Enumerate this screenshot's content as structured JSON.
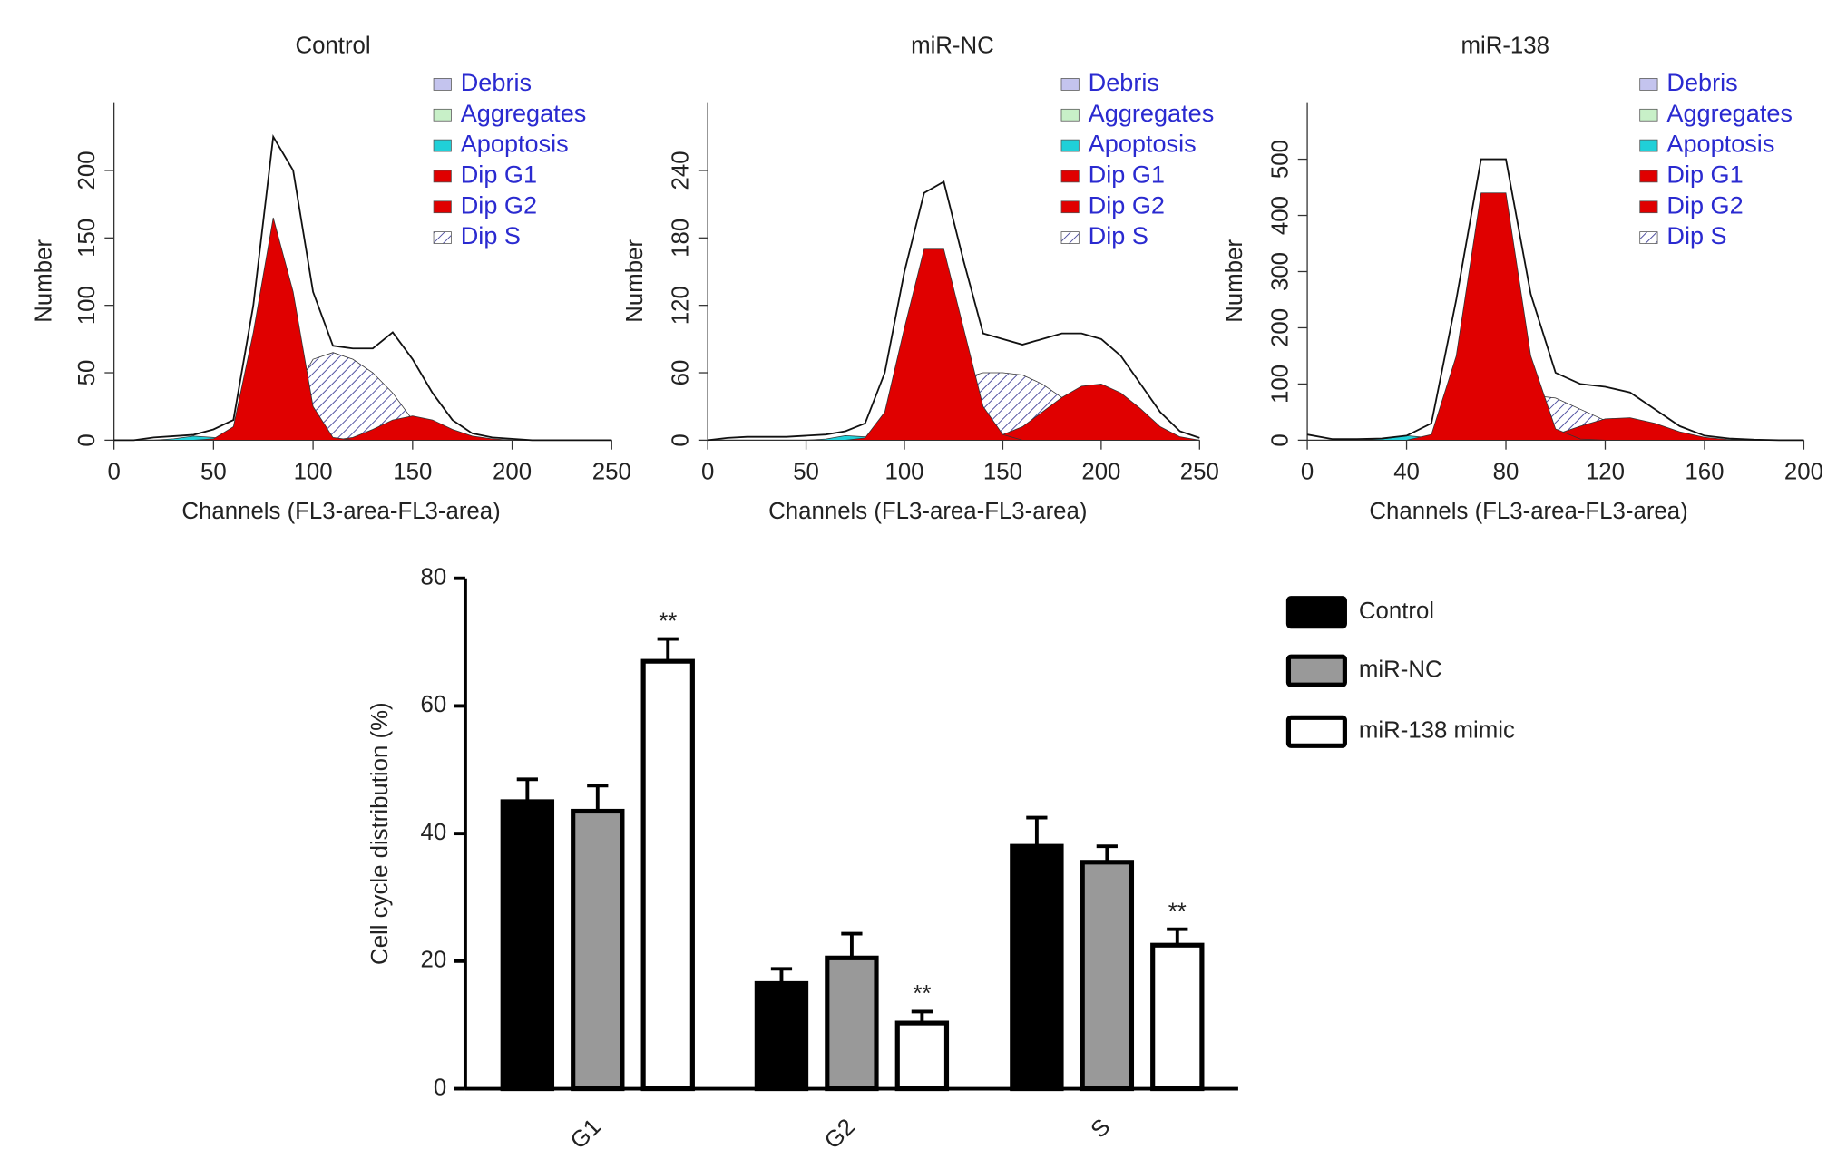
{
  "chart_data": [
    {
      "type": "area",
      "title": "Control",
      "x_label": "Channels (FL3-area-FL3-area)",
      "y_label": "Number",
      "x": [
        0,
        10,
        20,
        30,
        40,
        50,
        60,
        70,
        80,
        90,
        100,
        110,
        120,
        130,
        140,
        150,
        160,
        170,
        180,
        190,
        200,
        210,
        220,
        230,
        240,
        250
      ],
      "xlim": [
        0,
        250
      ],
      "xticks": [
        0,
        50,
        100,
        150,
        200,
        250
      ],
      "ylim": [
        0,
        250
      ],
      "yticks": [
        0,
        50,
        100,
        150,
        200
      ],
      "series": [
        {
          "name": "Debris",
          "color": "#c4c4ee",
          "values": [
            0,
            0,
            0,
            0,
            0,
            0,
            0,
            0,
            0,
            0,
            0,
            0,
            0,
            0,
            0,
            0,
            0,
            0,
            0,
            0,
            0,
            0,
            0,
            0,
            0,
            0
          ]
        },
        {
          "name": "Aggregates",
          "color": "#c8f0c8",
          "values": [
            0,
            0,
            0,
            0,
            0,
            0,
            0,
            0,
            0,
            0,
            0,
            0,
            0,
            0,
            0,
            0,
            0,
            0,
            0,
            0,
            0,
            0,
            0,
            0,
            0,
            0
          ]
        },
        {
          "name": "Apoptosis",
          "color": "#20d0d8",
          "values": [
            0,
            0,
            0,
            1,
            3,
            2,
            0,
            0,
            0,
            0,
            0,
            0,
            0,
            0,
            0,
            0,
            0,
            0,
            0,
            0,
            0,
            0,
            0,
            0,
            0,
            0
          ]
        },
        {
          "name": "Dip G1",
          "color": "#e00000",
          "values": [
            0,
            0,
            0,
            0,
            0,
            1,
            10,
            80,
            165,
            110,
            25,
            2,
            0,
            0,
            0,
            0,
            0,
            0,
            0,
            0,
            0,
            0,
            0,
            0,
            0,
            0
          ]
        },
        {
          "name": "Dip G2",
          "color": "#e00000",
          "values": [
            0,
            0,
            0,
            0,
            0,
            0,
            0,
            0,
            0,
            0,
            0,
            0,
            2,
            8,
            15,
            18,
            15,
            8,
            3,
            1,
            0,
            0,
            0,
            0,
            0,
            0
          ]
        },
        {
          "name": "Dip S",
          "color": "#d0d0ea",
          "pattern": "hatch",
          "values": [
            0,
            0,
            0,
            0,
            0,
            0,
            0,
            2,
            10,
            35,
            60,
            65,
            60,
            50,
            35,
            15,
            3,
            0,
            0,
            0,
            0,
            0,
            0,
            0,
            0,
            0
          ]
        }
      ],
      "observed": [
        0,
        0,
        2,
        3,
        4,
        8,
        15,
        100,
        225,
        200,
        110,
        70,
        68,
        68,
        80,
        60,
        35,
        15,
        5,
        2,
        1,
        0,
        0,
        0,
        0,
        0
      ]
    },
    {
      "type": "area",
      "title": "miR-NC",
      "x_label": "Channels (FL3-area-FL3-area)",
      "y_label": "Number",
      "x": [
        0,
        10,
        20,
        30,
        40,
        50,
        60,
        70,
        80,
        90,
        100,
        110,
        120,
        130,
        140,
        150,
        160,
        170,
        180,
        190,
        200,
        210,
        220,
        230,
        240,
        250
      ],
      "xlim": [
        0,
        250
      ],
      "xticks": [
        0,
        50,
        100,
        150,
        200,
        250
      ],
      "ylim": [
        0,
        300
      ],
      "yticks": [
        0,
        60,
        120,
        180,
        240
      ],
      "series": [
        {
          "name": "Debris",
          "color": "#c4c4ee",
          "values": [
            0,
            0,
            0,
            0,
            0,
            0,
            0,
            0,
            0,
            0,
            0,
            0,
            0,
            0,
            0,
            0,
            0,
            0,
            0,
            0,
            0,
            0,
            0,
            0,
            0,
            0
          ]
        },
        {
          "name": "Aggregates",
          "color": "#c8f0c8",
          "values": [
            0,
            0,
            0,
            0,
            0,
            0,
            0,
            0,
            0,
            0,
            0,
            0,
            0,
            0,
            0,
            0,
            0,
            0,
            0,
            0,
            0,
            0,
            0,
            0,
            0,
            0
          ]
        },
        {
          "name": "Apoptosis",
          "color": "#20d0d8",
          "values": [
            0,
            0,
            0,
            0,
            0,
            0,
            1,
            4,
            3,
            0,
            0,
            0,
            0,
            0,
            0,
            0,
            0,
            0,
            0,
            0,
            0,
            0,
            0,
            0,
            0,
            0
          ]
        },
        {
          "name": "Dip G1",
          "color": "#e00000",
          "values": [
            0,
            0,
            0,
            0,
            0,
            0,
            0,
            0,
            2,
            25,
            100,
            170,
            170,
            100,
            30,
            5,
            0,
            0,
            0,
            0,
            0,
            0,
            0,
            0,
            0,
            0
          ]
        },
        {
          "name": "Dip G2",
          "color": "#e00000",
          "values": [
            0,
            0,
            0,
            0,
            0,
            0,
            0,
            0,
            0,
            0,
            0,
            0,
            0,
            0,
            0,
            5,
            12,
            25,
            38,
            48,
            50,
            42,
            28,
            12,
            3,
            0
          ]
        },
        {
          "name": "Dip S",
          "color": "#d0d0ea",
          "pattern": "hatch",
          "values": [
            0,
            0,
            0,
            0,
            0,
            0,
            0,
            0,
            0,
            0,
            5,
            20,
            40,
            55,
            60,
            60,
            58,
            50,
            38,
            25,
            12,
            5,
            1,
            0,
            0,
            0
          ]
        }
      ],
      "observed": [
        0,
        2,
        3,
        3,
        3,
        4,
        5,
        8,
        15,
        60,
        150,
        220,
        230,
        160,
        95,
        90,
        85,
        90,
        95,
        95,
        90,
        75,
        50,
        25,
        8,
        2
      ]
    },
    {
      "type": "area",
      "title": "miR-138",
      "x_label": "Channels (FL3-area-FL3-area)",
      "y_label": "Number",
      "x": [
        0,
        10,
        20,
        30,
        40,
        50,
        60,
        70,
        80,
        90,
        100,
        110,
        120,
        130,
        140,
        150,
        160,
        170,
        180,
        190,
        200
      ],
      "xlim": [
        0,
        200
      ],
      "xticks": [
        0,
        40,
        80,
        120,
        160,
        200
      ],
      "ylim": [
        0,
        600
      ],
      "yticks": [
        0,
        100,
        200,
        300,
        400,
        500
      ],
      "series": [
        {
          "name": "Debris",
          "color": "#c4c4ee",
          "values": [
            0,
            0,
            0,
            0,
            0,
            0,
            0,
            0,
            0,
            0,
            0,
            0,
            0,
            0,
            0,
            0,
            0,
            0,
            0,
            0,
            0
          ]
        },
        {
          "name": "Aggregates",
          "color": "#c8f0c8",
          "values": [
            0,
            0,
            0,
            0,
            0,
            0,
            0,
            0,
            0,
            0,
            0,
            0,
            0,
            0,
            0,
            0,
            0,
            0,
            0,
            0,
            0
          ]
        },
        {
          "name": "Apoptosis",
          "color": "#20d0d8",
          "values": [
            0,
            0,
            0,
            2,
            8,
            4,
            0,
            0,
            0,
            0,
            0,
            0,
            0,
            0,
            0,
            0,
            0,
            0,
            0,
            0,
            0
          ]
        },
        {
          "name": "Dip G1",
          "color": "#e00000",
          "values": [
            0,
            0,
            0,
            0,
            0,
            10,
            150,
            440,
            440,
            150,
            20,
            2,
            0,
            0,
            0,
            0,
            0,
            0,
            0,
            0,
            0
          ]
        },
        {
          "name": "Dip G2",
          "color": "#e00000",
          "values": [
            0,
            0,
            0,
            0,
            0,
            0,
            0,
            0,
            0,
            3,
            10,
            25,
            38,
            40,
            30,
            15,
            5,
            1,
            0,
            0,
            0
          ]
        },
        {
          "name": "Dip S",
          "color": "#d0d0ea",
          "pattern": "hatch",
          "values": [
            0,
            0,
            0,
            0,
            0,
            0,
            5,
            30,
            60,
            80,
            75,
            55,
            35,
            18,
            7,
            2,
            0,
            0,
            0,
            0,
            0
          ]
        }
      ],
      "observed": [
        10,
        2,
        2,
        3,
        8,
        30,
        250,
        500,
        500,
        260,
        120,
        100,
        95,
        85,
        55,
        25,
        8,
        3,
        1,
        0,
        0
      ]
    },
    {
      "type": "bar",
      "y_label": "Cell cycle distribution (%)",
      "categories": [
        "G1",
        "G2",
        "S"
      ],
      "ylim": [
        0,
        80
      ],
      "yticks": [
        0,
        20,
        40,
        60,
        80
      ],
      "series": [
        {
          "name": "Control",
          "color": "#000000",
          "values": [
            45,
            16.5,
            38
          ],
          "errors": [
            3.5,
            2.3,
            4.5
          ]
        },
        {
          "name": "miR-NC",
          "color": "#999999",
          "values": [
            43.5,
            20.5,
            35.5
          ],
          "errors": [
            4,
            3.8,
            2.5
          ]
        },
        {
          "name": "miR-138 mimic",
          "color": "#ffffff",
          "values": [
            67,
            10.3,
            22.5
          ],
          "errors": [
            3.5,
            1.8,
            2.5
          ],
          "annotations": [
            "**",
            "**",
            "**"
          ]
        }
      ]
    }
  ]
}
